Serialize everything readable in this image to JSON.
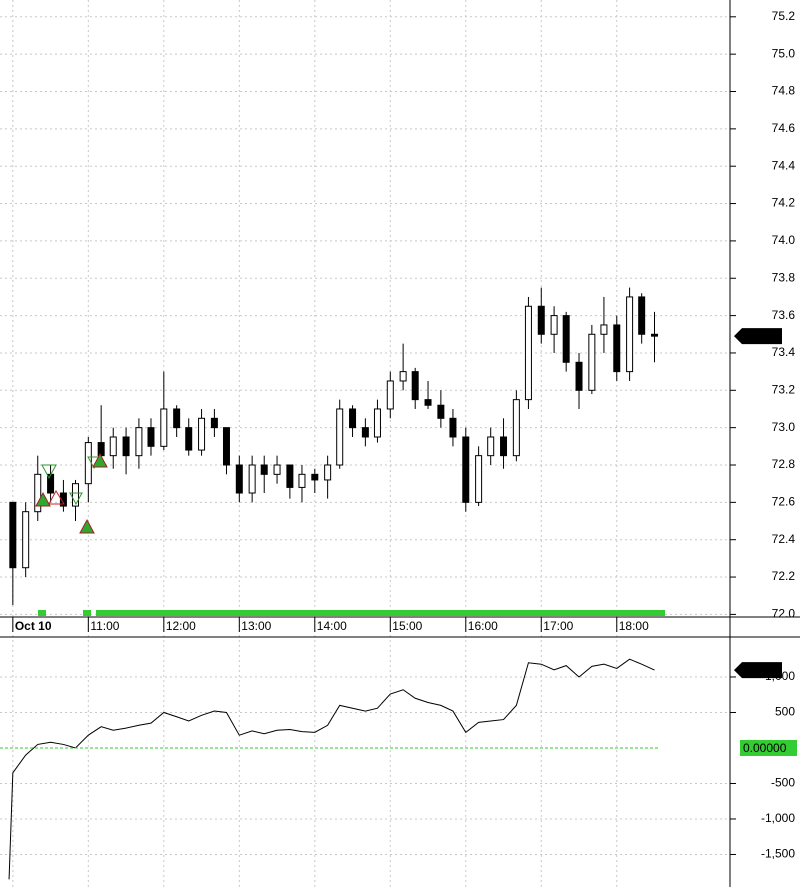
{
  "chart_data": [
    {
      "type": "candlestick",
      "up_color": "#ffffff",
      "down_color": "#000000",
      "edge_color": "#000000",
      "x": [
        10.0,
        10.17,
        10.33,
        10.5,
        10.67,
        10.83,
        11.0,
        11.17,
        11.33,
        11.5,
        11.67,
        11.83,
        12.0,
        12.17,
        12.33,
        12.5,
        12.67,
        12.83,
        13.0,
        13.17,
        13.33,
        13.5,
        13.67,
        13.83,
        14.0,
        14.17,
        14.33,
        14.5,
        14.67,
        14.83,
        15.0,
        15.17,
        15.33,
        15.5,
        15.67,
        15.83,
        16.0,
        16.17,
        16.33,
        16.5,
        16.67,
        16.83,
        17.0,
        17.17,
        17.33,
        17.5,
        17.67,
        17.83,
        18.0,
        18.17,
        18.33,
        18.5
      ],
      "open": [
        72.6,
        72.25,
        72.55,
        72.75,
        72.65,
        72.58,
        72.7,
        72.92,
        72.85,
        72.95,
        72.85,
        73.0,
        72.9,
        73.1,
        73.0,
        72.88,
        73.05,
        73.0,
        72.8,
        72.65,
        72.8,
        72.75,
        72.8,
        72.68,
        72.75,
        72.72,
        72.8,
        73.1,
        73.0,
        72.95,
        73.1,
        73.25,
        73.3,
        73.15,
        73.12,
        73.05,
        72.95,
        72.6,
        72.85,
        72.95,
        72.85,
        73.15,
        73.65,
        73.5,
        73.6,
        73.35,
        73.2,
        73.5,
        73.55,
        73.3,
        73.7,
        73.5
      ],
      "high": [
        72.6,
        72.6,
        72.85,
        72.8,
        72.72,
        72.72,
        72.95,
        73.12,
        73.0,
        73.0,
        73.05,
        73.05,
        73.3,
        73.12,
        73.05,
        73.1,
        73.1,
        73.0,
        72.85,
        72.85,
        72.85,
        72.85,
        72.8,
        72.8,
        72.78,
        72.85,
        73.15,
        73.12,
        73.05,
        73.15,
        73.3,
        73.45,
        73.32,
        73.25,
        73.2,
        73.1,
        73.0,
        72.9,
        73.0,
        73.05,
        73.2,
        73.7,
        73.75,
        73.65,
        73.62,
        73.4,
        73.55,
        73.7,
        73.6,
        73.75,
        73.72,
        73.62
      ],
      "low": [
        72.05,
        72.2,
        72.5,
        72.6,
        72.55,
        72.5,
        72.6,
        72.8,
        72.78,
        72.75,
        72.78,
        72.85,
        72.88,
        72.95,
        72.85,
        72.85,
        72.95,
        72.75,
        72.6,
        72.6,
        72.65,
        72.7,
        72.62,
        72.6,
        72.65,
        72.62,
        72.78,
        72.95,
        72.9,
        72.92,
        73.05,
        73.2,
        73.1,
        73.1,
        73.0,
        72.9,
        72.55,
        72.58,
        72.8,
        72.78,
        72.82,
        73.1,
        73.45,
        73.4,
        73.3,
        73.1,
        73.18,
        73.4,
        73.25,
        73.25,
        73.45,
        73.35
      ],
      "close": [
        72.25,
        72.55,
        72.75,
        72.65,
        72.58,
        72.7,
        72.92,
        72.85,
        72.95,
        72.85,
        73.0,
        72.9,
        73.1,
        73.0,
        72.88,
        73.05,
        73.0,
        72.8,
        72.65,
        72.8,
        72.75,
        72.8,
        72.68,
        72.75,
        72.72,
        72.8,
        73.1,
        73.0,
        72.95,
        73.1,
        73.25,
        73.3,
        73.15,
        73.12,
        73.05,
        72.95,
        72.6,
        72.85,
        72.95,
        72.85,
        73.15,
        73.65,
        73.5,
        73.6,
        73.35,
        73.2,
        73.5,
        73.55,
        73.3,
        73.7,
        73.5,
        73.49
      ],
      "xlim": [
        9.83,
        19.5
      ],
      "xticks": [
        {
          "value": 10,
          "label": "Oct 10"
        },
        {
          "value": 11,
          "label": "11:00"
        },
        {
          "value": 12,
          "label": "12:00"
        },
        {
          "value": 13,
          "label": "13:00"
        },
        {
          "value": 14,
          "label": "14:00"
        },
        {
          "value": 15,
          "label": "15:00"
        },
        {
          "value": 16,
          "label": "16:00"
        },
        {
          "value": 17,
          "label": "17:00"
        },
        {
          "value": 18,
          "label": "18:00"
        }
      ],
      "ylim": [
        71.97,
        75.29
      ],
      "yticks": [
        {
          "value": 72.0,
          "label": "72.0"
        },
        {
          "value": 72.2,
          "label": "72.2"
        },
        {
          "value": 72.4,
          "label": "72.4"
        },
        {
          "value": 72.6,
          "label": "72.6"
        },
        {
          "value": 72.8,
          "label": "72.8"
        },
        {
          "value": 73.0,
          "label": "73.0"
        },
        {
          "value": 73.2,
          "label": "73.2"
        },
        {
          "value": 73.4,
          "label": "73.4"
        },
        {
          "value": 73.6,
          "label": "73.6"
        },
        {
          "value": 73.8,
          "label": "73.8"
        },
        {
          "value": 74.0,
          "label": "74.0"
        },
        {
          "value": 74.2,
          "label": "74.2"
        },
        {
          "value": 74.4,
          "label": "74.4"
        },
        {
          "value": 74.6,
          "label": "74.6"
        },
        {
          "value": 74.8,
          "label": "74.8"
        },
        {
          "value": 75.0,
          "label": "75.0"
        },
        {
          "value": 75.2,
          "label": "75.2"
        }
      ],
      "grid": true,
      "last_value": {
        "value": 73.49,
        "label": "73.49"
      }
    },
    {
      "type": "line",
      "color": "#000000",
      "x": [
        9.95,
        10.0,
        10.17,
        10.33,
        10.5,
        10.67,
        10.83,
        11.0,
        11.17,
        11.33,
        11.5,
        11.67,
        11.83,
        12.0,
        12.17,
        12.33,
        12.5,
        12.67,
        12.83,
        13.0,
        13.17,
        13.33,
        13.5,
        13.67,
        13.83,
        14.0,
        14.17,
        14.33,
        14.5,
        14.67,
        14.83,
        15.0,
        15.17,
        15.33,
        15.5,
        15.67,
        15.83,
        16.0,
        16.17,
        16.33,
        16.5,
        16.67,
        16.83,
        17.0,
        17.17,
        17.33,
        17.5,
        17.67,
        17.83,
        18.0,
        18.17,
        18.33,
        18.5
      ],
      "values": [
        -1850,
        -350,
        -100,
        50,
        80,
        50,
        0,
        180,
        300,
        250,
        280,
        320,
        350,
        500,
        440,
        380,
        460,
        520,
        500,
        180,
        240,
        200,
        250,
        260,
        230,
        220,
        320,
        600,
        560,
        520,
        560,
        760,
        820,
        700,
        640,
        600,
        520,
        220,
        360,
        380,
        400,
        600,
        1200,
        1180,
        1100,
        1160,
        1000,
        1150,
        1180,
        1120,
        1250,
        1180,
        1097
      ],
      "xlim": [
        9.83,
        19.5
      ],
      "ylim": [
        -1958,
        1563
      ],
      "yticks": [
        {
          "value": -1500,
          "label": "-1,500"
        },
        {
          "value": -1000,
          "label": "-1,000"
        },
        -500,
        500,
        {
          "value": 1000,
          "label": "1,000"
        }
      ],
      "grid": true,
      "reference": {
        "value": 0,
        "label": "0.00000",
        "color": "#33cc33"
      },
      "last_value": {
        "value": 1097,
        "label": "1,097"
      }
    }
  ]
}
